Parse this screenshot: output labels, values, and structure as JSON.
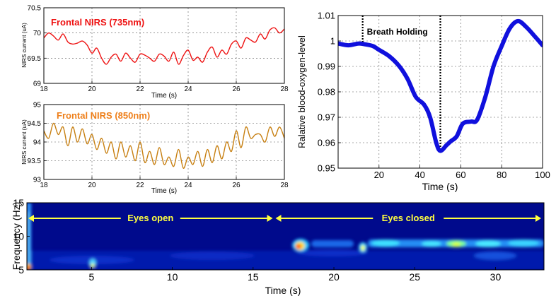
{
  "chart_data": [
    {
      "id": "nirs735",
      "type": "line",
      "title": "Frontal NIRS (735nm)",
      "xlabel": "Time (s)",
      "ylabel": "NIRS current (uA)",
      "xlim": [
        18,
        28
      ],
      "ylim": [
        69,
        70.5
      ],
      "xticks": [
        18,
        20,
        22,
        24,
        26,
        28
      ],
      "yticks": [
        69,
        69.5,
        70,
        70.5
      ],
      "grid": true,
      "title_color": "#ee1111",
      "series": [
        {
          "color": "#ee1111",
          "x": [
            18.0,
            18.2,
            18.4,
            18.6,
            18.8,
            19.0,
            19.2,
            19.4,
            19.6,
            19.8,
            20.0,
            20.2,
            20.4,
            20.6,
            20.8,
            21.0,
            21.2,
            21.4,
            21.6,
            21.8,
            22.0,
            22.2,
            22.4,
            22.6,
            22.8,
            23.0,
            23.2,
            23.4,
            23.6,
            23.8,
            24.0,
            24.2,
            24.4,
            24.6,
            24.8,
            25.0,
            25.2,
            25.4,
            25.6,
            25.8,
            26.0,
            26.2,
            26.4,
            26.6,
            26.8,
            27.0,
            27.2,
            27.4,
            27.6,
            27.8,
            28.0
          ],
          "y": [
            69.9,
            70.0,
            69.94,
            69.86,
            69.98,
            69.82,
            69.78,
            69.8,
            69.84,
            69.76,
            69.6,
            69.7,
            69.5,
            69.38,
            69.52,
            69.58,
            69.44,
            69.6,
            69.5,
            69.42,
            69.58,
            69.56,
            69.5,
            69.44,
            69.58,
            69.54,
            69.44,
            69.62,
            69.38,
            69.55,
            69.66,
            69.46,
            69.52,
            69.42,
            69.62,
            69.72,
            69.52,
            69.66,
            69.58,
            69.78,
            69.84,
            69.7,
            69.9,
            69.86,
            69.82,
            69.98,
            69.88,
            70.06,
            70.1,
            70.0,
            70.08
          ]
        }
      ]
    },
    {
      "id": "nirs850",
      "type": "line",
      "title": "Frontal NIRS (850nm)",
      "xlabel": "Time (s)",
      "ylabel": "NIRS current (uA)",
      "xlim": [
        18,
        28
      ],
      "ylim": [
        93,
        95
      ],
      "xticks": [
        18,
        20,
        22,
        24,
        26,
        28
      ],
      "yticks": [
        93,
        93.5,
        94,
        94.5,
        95
      ],
      "grid": true,
      "title_color": "#ee7f1a",
      "series": [
        {
          "color": "#c77f10",
          "x": [
            18.0,
            18.2,
            18.4,
            18.6,
            18.8,
            19.0,
            19.2,
            19.4,
            19.6,
            19.8,
            20.0,
            20.2,
            20.4,
            20.6,
            20.8,
            21.0,
            21.2,
            21.4,
            21.6,
            21.8,
            22.0,
            22.2,
            22.4,
            22.6,
            22.8,
            23.0,
            23.2,
            23.4,
            23.6,
            23.8,
            24.0,
            24.2,
            24.4,
            24.6,
            24.8,
            25.0,
            25.2,
            25.4,
            25.6,
            25.8,
            26.0,
            26.2,
            26.4,
            26.6,
            26.8,
            27.0,
            27.2,
            27.4,
            27.6,
            27.8,
            28.0
          ],
          "y": [
            94.3,
            94.1,
            94.5,
            94.2,
            94.4,
            93.9,
            94.4,
            94.0,
            94.35,
            93.95,
            94.2,
            93.8,
            94.1,
            93.7,
            94.0,
            93.55,
            94.0,
            93.6,
            93.9,
            93.5,
            94.0,
            93.45,
            93.75,
            93.4,
            93.85,
            93.4,
            93.6,
            93.35,
            93.8,
            93.3,
            93.6,
            93.4,
            93.75,
            93.35,
            93.8,
            93.45,
            93.9,
            93.55,
            94.0,
            93.75,
            94.3,
            93.85,
            94.4,
            94.1,
            94.2,
            94.2,
            94.0,
            94.4,
            94.15,
            94.4,
            94.1
          ]
        }
      ]
    },
    {
      "id": "oxygen",
      "type": "line",
      "title": "",
      "xlabel": "Time (s)",
      "ylabel": "Ralative blood-oxygen-level",
      "xlim": [
        0,
        100
      ],
      "ylim": [
        0.95,
        1.01
      ],
      "xticks": [
        20,
        40,
        60,
        80,
        100
      ],
      "yticks": [
        0.95,
        0.96,
        0.97,
        0.98,
        0.99,
        1,
        1.01
      ],
      "grid": true,
      "annotations": [
        {
          "text": "Breath Holding",
          "x_start": 12,
          "x_end": 50
        }
      ],
      "series": [
        {
          "color": "#1010dd",
          "x": [
            0,
            5,
            10,
            13,
            17,
            20,
            25,
            30,
            34,
            38,
            42,
            45,
            48,
            50,
            53,
            55,
            58,
            61,
            65,
            68,
            72,
            76,
            80,
            84,
            88,
            92,
            96,
            100
          ],
          "y": [
            0.999,
            0.9983,
            0.999,
            0.9987,
            0.998,
            0.9965,
            0.994,
            0.99,
            0.985,
            0.978,
            0.975,
            0.97,
            0.96,
            0.9568,
            0.959,
            0.9605,
            0.9625,
            0.9675,
            0.9683,
            0.969,
            0.978,
            0.99,
            0.998,
            1.005,
            1.0078,
            1.0055,
            1.002,
            0.9983
          ]
        }
      ]
    },
    {
      "id": "spectrogram",
      "type": "heatmap",
      "title": "",
      "xlabel": "Time (s)",
      "ylabel": "Frequency (Hz)",
      "xlim": [
        1,
        33
      ],
      "ylim": [
        5,
        15
      ],
      "xticks": [
        5,
        10,
        15,
        20,
        25,
        30
      ],
      "yticks": [
        5,
        10,
        15
      ],
      "annotations": [
        {
          "text": "Eyes open",
          "x_start": 1,
          "x_end": 16.3
        },
        {
          "text": "Eyes closed",
          "x_start": 16.3,
          "x_end": 33
        }
      ]
    }
  ]
}
